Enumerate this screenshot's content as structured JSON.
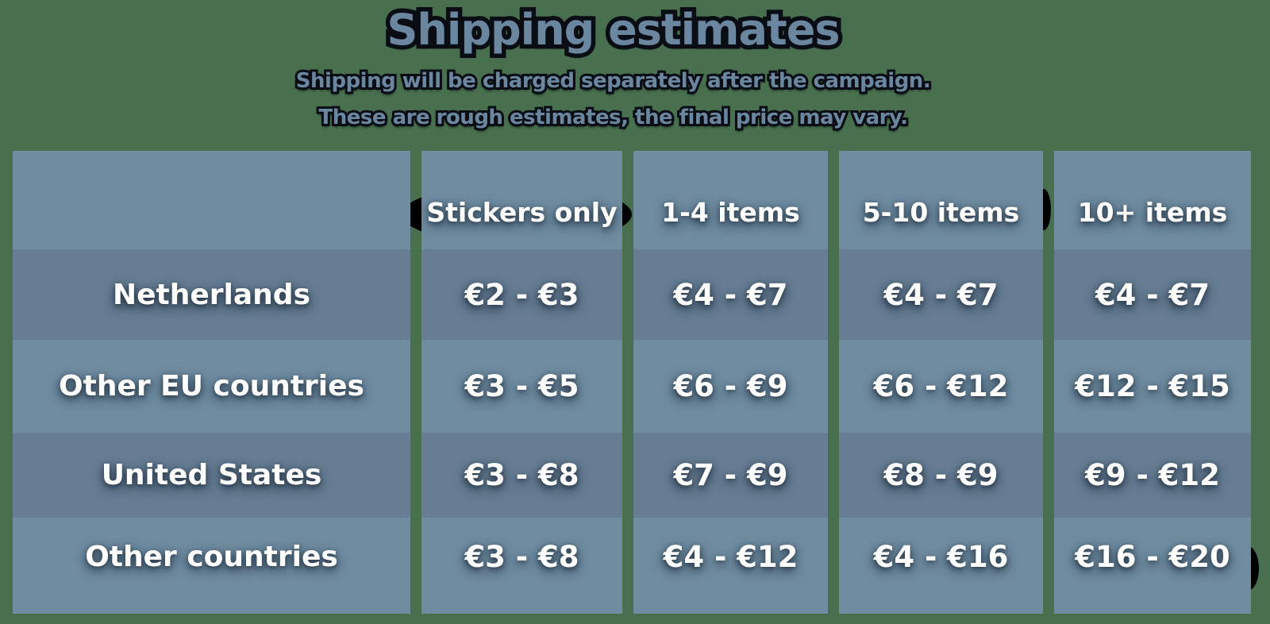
{
  "colors": {
    "background": "#48704e",
    "cell_light": "#6f8ca1",
    "cell_dark": "#667d93",
    "header_text_fill": "#6b87a0",
    "header_text_outline": "#0a0e14",
    "table_text": "#ffffff",
    "ink_blot": "#000000"
  },
  "header": {
    "title": "Shipping estimates",
    "subtitle_line1": "Shipping will be charged separately after the campaign.",
    "subtitle_line2": "These are rough estimates, the final price may vary."
  },
  "chart_data": {
    "type": "table",
    "title": "Shipping estimates",
    "subtitle": [
      "Shipping will be charged separately after the campaign.",
      "These are rough estimates, the final price may vary."
    ],
    "columns": [
      "",
      "Stickers only",
      "1-4 items",
      "5-10 items",
      "10+ items"
    ],
    "rows": [
      {
        "label": "Netherlands",
        "values": [
          "€2 - €3",
          "€4 - €7",
          "€4 - €7",
          "€4 - €7"
        ]
      },
      {
        "label": "Other EU countries",
        "values": [
          "€3 - €5",
          "€6 - €9",
          "€6 - €12",
          "€12 - €15"
        ]
      },
      {
        "label": "United States",
        "values": [
          "€3 - €8",
          "€7 - €9",
          "€8 - €9",
          "€9 - €12"
        ]
      },
      {
        "label": "Other countries",
        "values": [
          "€3 - €8",
          "€4 - €12",
          "€4 - €16",
          "€16 - €20"
        ]
      }
    ],
    "row_shading": [
      "dark",
      "light",
      "dark",
      "light"
    ],
    "currency": "EUR"
  }
}
